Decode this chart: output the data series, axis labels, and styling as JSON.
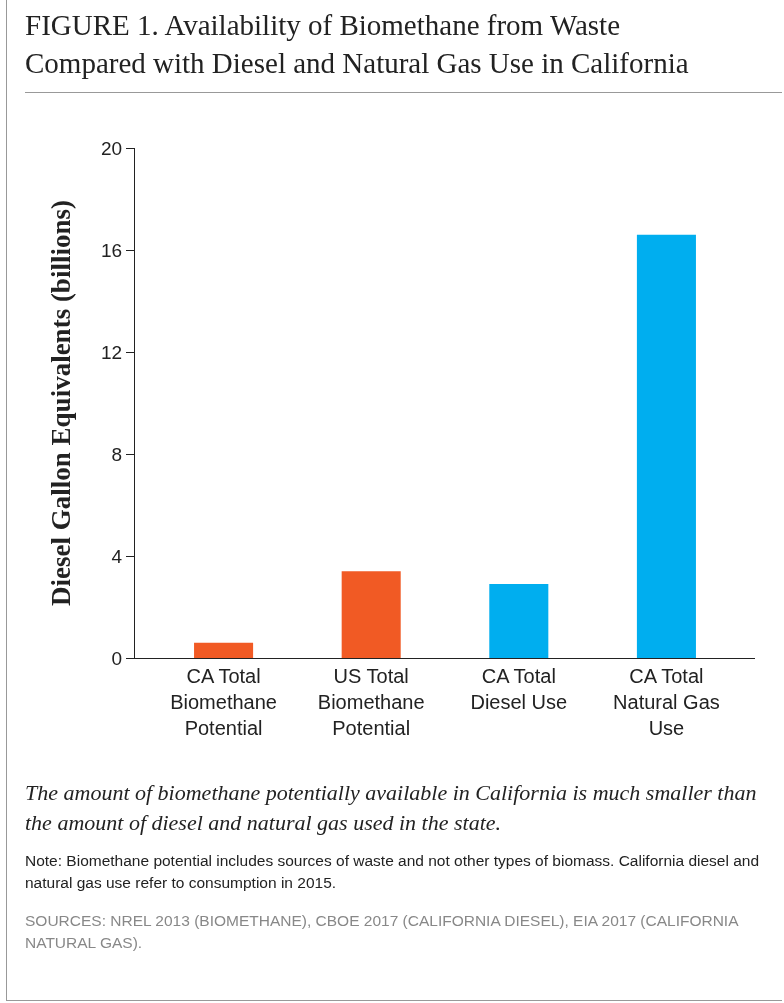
{
  "chart_data": {
    "type": "bar",
    "title": "FIGURE 1. Availability of Biomethane from Waste Compared with Diesel and Natural Gas Use in California",
    "ylabel": "Diesel Gallon Equivalents (billions)",
    "categories": [
      "CA Total Biomethane Potential",
      "US Total Biomethane Potential",
      "CA Total Diesel Use",
      "CA Total Natural Gas Use"
    ],
    "values": [
      0.6,
      3.4,
      2.9,
      16.6
    ],
    "colors": [
      "#f15a24",
      "#f15a24",
      "#00aeef",
      "#00aeef"
    ],
    "ylim": [
      0,
      20
    ],
    "yticks": [
      0,
      4,
      8,
      12,
      16,
      20
    ],
    "grid": false,
    "annotations": [
      "The amount of biomethane potentially available in California is much smaller than the amount of diesel and natural gas used in the state.",
      "Note: Biomethane potential includes sources of waste and not other types of biomass. California diesel and natural gas use refer to consumption in 2015.",
      "SOURCES: NREL 2013 (BIOMETHANE), CBOE 2017 (CALIFORNIA DIESEL), EIA 2017 (CALIFORNIA NATURAL GAS)."
    ]
  }
}
